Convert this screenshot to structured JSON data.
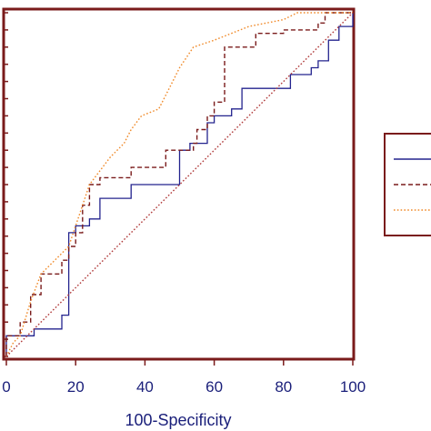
{
  "chart_data": {
    "type": "line",
    "title": "",
    "xlabel": "100-Specificity",
    "ylabel": "",
    "xlim": [
      0,
      100
    ],
    "ylim": [
      0,
      100
    ],
    "x_ticks": [
      0,
      20,
      40,
      60,
      80,
      100
    ],
    "x_tick_labels": [
      "0",
      "20",
      "40",
      "60",
      "80",
      "100"
    ],
    "grid": false,
    "legend": {
      "placement": "right",
      "entries": 3
    },
    "colors": {
      "frame": "#7a1b1b",
      "text": "#1a1f7a",
      "diagonal": "#b03a3a"
    },
    "series": [
      {
        "color": "#23238e",
        "style": "solid",
        "x": [
          0,
          0,
          8,
          8,
          16,
          16,
          18,
          18,
          20,
          20,
          24,
          24,
          27,
          27,
          36,
          36,
          50,
          50,
          53,
          53,
          58,
          58,
          60,
          60,
          65,
          65,
          68,
          68,
          82,
          82,
          88,
          88,
          90,
          90,
          93,
          93,
          96,
          96,
          100,
          100
        ],
        "y": [
          0,
          6,
          6,
          8,
          8,
          12,
          12,
          36,
          36,
          38,
          38,
          40,
          40,
          46,
          46,
          50,
          50,
          60,
          60,
          62,
          62,
          68,
          68,
          70,
          70,
          72,
          72,
          78,
          78,
          82,
          82,
          84,
          84,
          86,
          86,
          92,
          92,
          96,
          96,
          100
        ]
      },
      {
        "color": "#7a1b1b",
        "style": "dashed",
        "x": [
          0,
          0,
          4,
          4,
          7,
          7,
          10,
          10,
          16,
          16,
          18,
          18,
          20,
          20,
          22,
          22,
          24,
          24,
          27,
          27,
          36,
          36,
          46,
          46,
          54,
          54,
          55,
          55,
          58,
          58,
          60,
          60,
          63,
          63,
          72,
          72,
          80,
          80,
          90,
          90,
          92,
          92,
          100,
          100
        ],
        "y": [
          0,
          6,
          6,
          10,
          10,
          18,
          18,
          24,
          24,
          28,
          28,
          32,
          32,
          36,
          36,
          44,
          44,
          50,
          50,
          52,
          52,
          55,
          55,
          60,
          60,
          62,
          62,
          66,
          66,
          70,
          70,
          74,
          74,
          90,
          90,
          94,
          94,
          95,
          95,
          97,
          97,
          100,
          100,
          100
        ]
      },
      {
        "color": "#f08a2a",
        "style": "dotted",
        "x": [
          0,
          2,
          4,
          7,
          10,
          14,
          18,
          20,
          24,
          30,
          34,
          36,
          39,
          44,
          47,
          50,
          54,
          60,
          70,
          80,
          84,
          90,
          100
        ],
        "y": [
          0,
          4,
          6,
          16,
          24,
          28,
          32,
          38,
          50,
          58,
          62,
          66,
          70,
          72,
          78,
          84,
          90,
          92,
          96,
          98,
          100,
          100,
          100
        ]
      },
      {
        "color": "#b03a3a",
        "style": "dotted",
        "x": [
          0,
          100
        ],
        "y": [
          0,
          100
        ]
      }
    ]
  }
}
